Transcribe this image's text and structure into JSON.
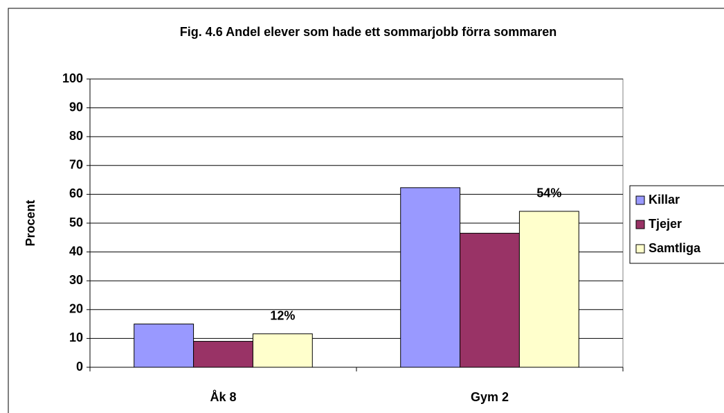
{
  "chart_data": {
    "type": "bar",
    "title": "Fig. 4.6 Andel elever som hade ett sommarjobb förra sommaren",
    "ylabel": "Procent",
    "categories": [
      "Åk 8",
      "Gym 2"
    ],
    "series": [
      {
        "name": "Killar",
        "color": "#9999ff",
        "values": [
          15,
          62.3
        ]
      },
      {
        "name": "Tjejer",
        "color": "#993366",
        "values": [
          9,
          46.5
        ]
      },
      {
        "name": "Samtliga",
        "color": "#ffffcc",
        "values": [
          11.6,
          54.1
        ],
        "value_labels": [
          "12%",
          "54%"
        ]
      }
    ],
    "ylim": [
      0,
      100
    ],
    "yticks": [
      0,
      10,
      20,
      30,
      40,
      50,
      60,
      70,
      80,
      90,
      100
    ],
    "grid": true,
    "legend": "right"
  }
}
